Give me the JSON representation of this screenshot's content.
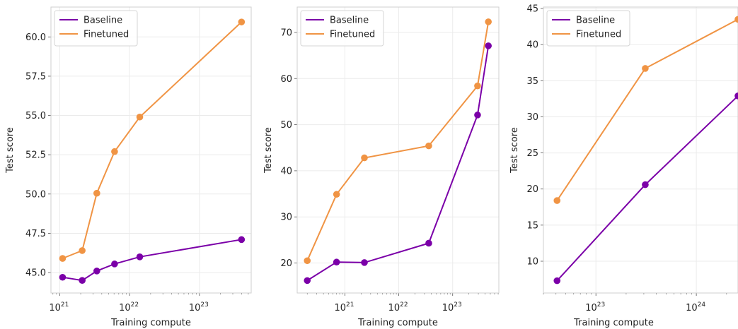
{
  "chart_data": [
    {
      "type": "line",
      "xlabel": "Training compute",
      "ylabel": "Test score",
      "xscale": "log",
      "xlim": [
        7.5e+20,
        5.5e+23
      ],
      "ylim": [
        43.7,
        61.9
      ],
      "yticks": [
        "45.0",
        "47.5",
        "50.0",
        "52.5",
        "55.0",
        "57.5",
        "60.0"
      ],
      "xticks": [
        {
          "base": "10",
          "exp": "21",
          "value": 1e+21
        },
        {
          "base": "10",
          "exp": "22",
          "value": 1e+22
        },
        {
          "base": "10",
          "exp": "23",
          "value": 1e+23
        }
      ],
      "grid": true,
      "legend": "top-left",
      "series": [
        {
          "name": "Baseline",
          "color": "#7b00a8",
          "x": [
            1.1e+21,
            2.1e+21,
            3.4e+21,
            6.1e+21,
            1.4e+22,
            4e+23
          ],
          "y": [
            44.7,
            44.5,
            45.1,
            45.55,
            46.0,
            47.1
          ]
        },
        {
          "name": "Finetuned",
          "color": "#f09444",
          "x": [
            1.1e+21,
            2.1e+21,
            3.4e+21,
            6.1e+21,
            1.4e+22,
            4e+23
          ],
          "y": [
            45.9,
            46.4,
            50.05,
            52.7,
            54.9,
            60.95
          ]
        }
      ]
    },
    {
      "type": "line",
      "xlabel": "Training compute",
      "ylabel": "Test score",
      "xscale": "log",
      "xlim": [
        1.3e+20,
        7.2e+23
      ],
      "ylim": [
        13.5,
        75.5
      ],
      "yticks": [
        "20",
        "30",
        "40",
        "50",
        "60",
        "70"
      ],
      "xticks": [
        {
          "base": "10",
          "exp": "21",
          "value": 1e+21
        },
        {
          "base": "10",
          "exp": "22",
          "value": 1e+22
        },
        {
          "base": "10",
          "exp": "23",
          "value": 1e+23
        }
      ],
      "grid": true,
      "legend": "top-left",
      "series": [
        {
          "name": "Baseline",
          "color": "#7b00a8",
          "x": [
            2e+20,
            7e+20,
            2.3e+21,
            3.6e+22,
            2.9e+23,
            4.6e+23
          ],
          "y": [
            16.2,
            20.2,
            20.1,
            24.3,
            52.1,
            67.1
          ]
        },
        {
          "name": "Finetuned",
          "color": "#f09444",
          "x": [
            2e+20,
            7e+20,
            2.3e+21,
            3.6e+22,
            2.9e+23,
            4.6e+23
          ],
          "y": [
            20.5,
            34.9,
            42.8,
            45.4,
            58.4,
            72.3
          ]
        }
      ]
    },
    {
      "type": "line",
      "xlabel": "Training compute",
      "ylabel": "Test score",
      "xscale": "log",
      "xlim": [
        3e+22,
        2.6e+24
      ],
      "ylim": [
        5.6,
        45.2
      ],
      "yticks": [
        "10",
        "15",
        "20",
        "25",
        "30",
        "35",
        "40",
        "45"
      ],
      "xticks": [
        {
          "base": "10",
          "exp": "23",
          "value": 1e+23
        },
        {
          "base": "10",
          "exp": "24",
          "value": 1e+24
        }
      ],
      "grid": true,
      "legend": "top-left",
      "series": [
        {
          "name": "Baseline",
          "color": "#7b00a8",
          "x": [
            4.1e+22,
            3.1e+23,
            2.6e+24
          ],
          "y": [
            7.3,
            20.6,
            32.9
          ]
        },
        {
          "name": "Finetuned",
          "color": "#f09444",
          "x": [
            4.1e+22,
            3.1e+23,
            2.6e+24
          ],
          "y": [
            18.4,
            36.7,
            43.5
          ]
        }
      ]
    }
  ]
}
